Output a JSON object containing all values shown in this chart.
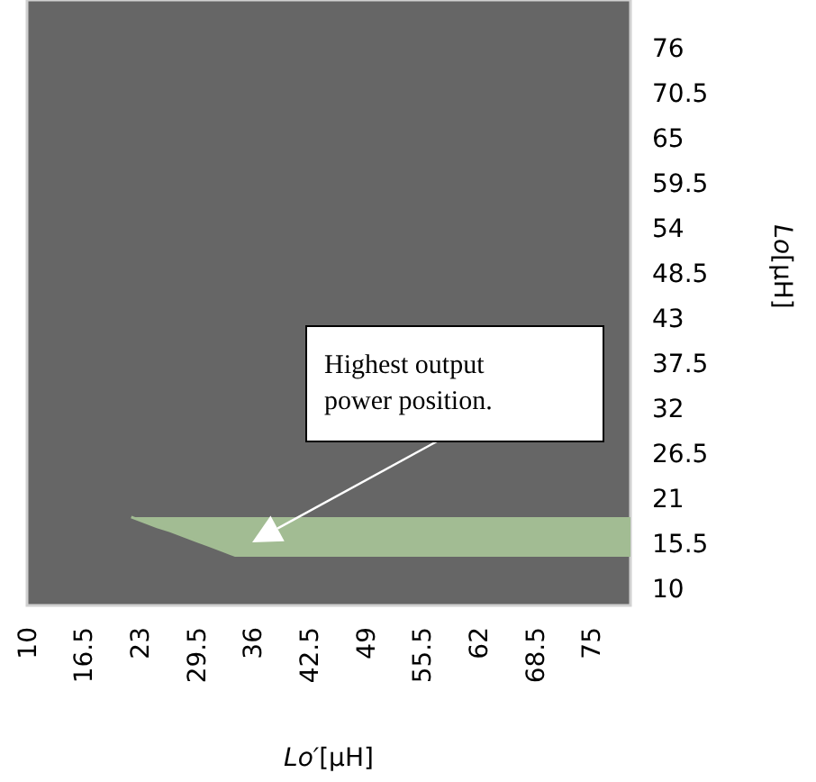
{
  "chart_data": {
    "type": "line",
    "xlabel": "Lo′[μH]",
    "ylabel": "Lo[μH]",
    "x": [
      22,
      23.5,
      25,
      26.5,
      28,
      29.5,
      31,
      32.5,
      34,
      79.5
    ],
    "series": [
      {
        "color": "#a2bc93",
        "values": [
          18.8,
          18.2,
          17.6,
          17.1,
          16.5,
          15.9,
          15.3,
          14.7,
          14.1,
          14.1
        ],
        "lower": [
          18.8,
          18.2,
          17.6,
          17.1,
          16.5,
          15.9,
          15.3,
          14.7,
          14.1,
          14.1
        ],
        "upper": [
          18.8,
          18.8,
          18.8,
          18.8,
          18.8,
          18.8,
          18.8,
          18.8,
          18.8,
          18.8
        ]
      }
    ],
    "xlim": [
      10,
      79.5
    ],
    "xticks": [
      10,
      16.5,
      23,
      29.5,
      36,
      42.5,
      49,
      55.5,
      62,
      68.5,
      75
    ],
    "ylim": [
      8,
      82
    ],
    "yticks": [
      76,
      70.5,
      65,
      59.5,
      54,
      48.5,
      43,
      37.5,
      32,
      26.5,
      21,
      15.5,
      10
    ],
    "annotations": [
      "Highest output power position."
    ],
    "grid": false
  }
}
